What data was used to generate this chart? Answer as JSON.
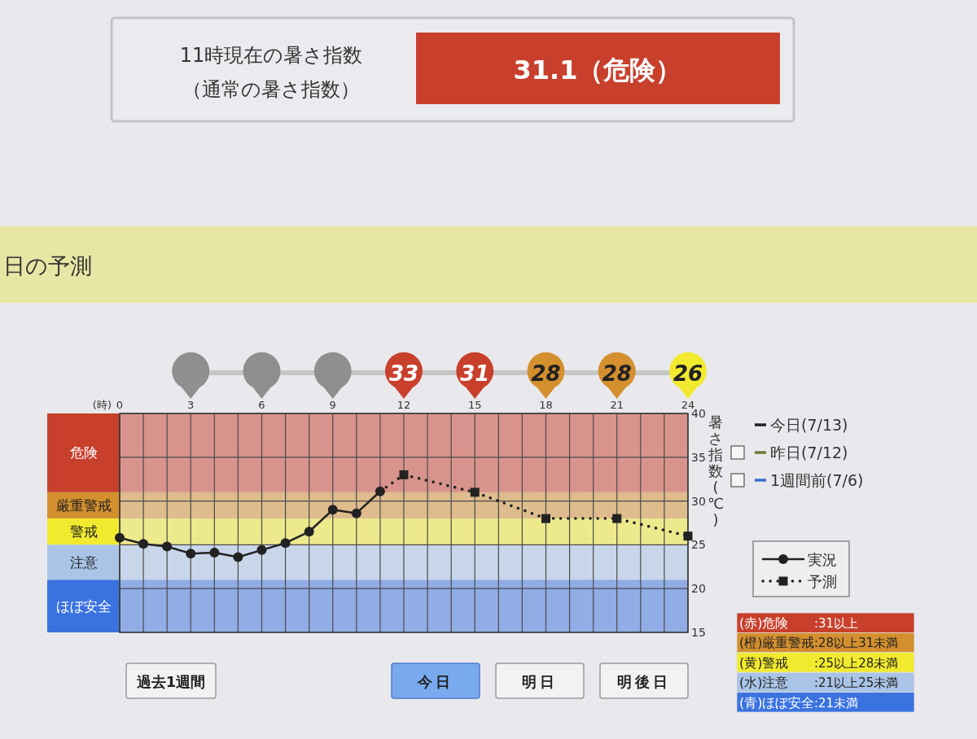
{
  "chart_data": [
    {
      "type": "other",
      "annotations": [
        "11時現在の暑さ指数",
        "（通常の暑さ指数）",
        "31.1（危険）"
      ]
    },
    {
      "type": "other",
      "title": "日の予測",
      "categories": [
        null,
        null,
        null,
        null,
        null,
        null,
        null,
        null,
        null
      ],
      "values": [
        null,
        null,
        null,
        null,
        33,
        31,
        28,
        28,
        26
      ],
      "colors": [
        null,
        "#8f8f8f",
        "#8f8f8f",
        "#8f8f8f",
        "#c8402c",
        "#c8402c",
        "#d4902e",
        "#d4902e",
        "#f2ea2e"
      ],
      "data_labels": true
    },
    {
      "type": "line",
      "xlabel": "(時)",
      "ylabel": "暑さ指数(℃)",
      "legend_title": "今日(7/13)",
      "legend": "right",
      "grid": true,
      "xlim": [
        0,
        24
      ],
      "xticks": [
        0,
        {
          "value": 1,
          "label": null
        },
        {
          "value": 2,
          "label": null
        },
        3,
        {
          "value": 4,
          "label": null
        },
        {
          "value": 5,
          "label": null
        },
        6,
        {
          "value": 7,
          "label": null
        },
        {
          "value": 8,
          "label": null
        },
        9,
        {
          "value": 10,
          "label": null
        },
        {
          "value": 11,
          "label": null
        },
        12,
        {
          "value": 13,
          "label": null
        },
        {
          "value": 14,
          "label": null
        },
        15,
        {
          "value": 16,
          "label": null
        },
        {
          "value": 17,
          "label": null
        },
        18,
        {
          "value": 19,
          "label": null
        },
        {
          "value": 20,
          "label": null
        },
        21,
        {
          "value": 22,
          "label": null
        },
        {
          "value": 23,
          "label": null
        },
        24
      ],
      "ylim": [
        15,
        40
      ],
      "yticks": [
        15,
        20,
        25,
        30,
        35,
        40
      ],
      "series": [
        {
          "name": "実況",
          "color": "#222222",
          "marker": "circle",
          "line_style": "solid",
          "x": [
            0,
            1,
            2,
            3,
            4,
            5,
            6,
            7,
            8,
            9,
            10,
            11
          ],
          "values": [
            25.8,
            25.1,
            24.8,
            24.0,
            24.1,
            23.6,
            24.4,
            25.2,
            26.5,
            29.0,
            28.6,
            31.1
          ]
        },
        {
          "name": "予測",
          "color": "#222222",
          "marker": "square",
          "line_style": "dotted",
          "x": [
            11,
            12,
            15,
            18,
            21,
            24
          ],
          "values": [
            31.1,
            33,
            31,
            28,
            28,
            26
          ]
        },
        {
          "name": "昨日(7/12)",
          "color": "#6f7a3a",
          "values": [
            null
          ]
        },
        {
          "name": "1週間前(7/6)",
          "color": "#3d6fd0",
          "values": [
            null
          ]
        }
      ],
      "bands": [
        {
          "axis": "y",
          "from": 31,
          "to": 40,
          "label": "危険",
          "color": "#c8402c"
        },
        {
          "axis": "y",
          "from": 28,
          "to": 31,
          "label": "厳重警戒",
          "color": "#d4902e"
        },
        {
          "axis": "y",
          "from": 25,
          "to": 28,
          "label": "警戒",
          "color": "#f2ea2e"
        },
        {
          "axis": "y",
          "from": 21,
          "to": 25,
          "label": "注意",
          "color": "#a9c4e6"
        },
        {
          "axis": "y",
          "from": 15,
          "to": 21,
          "label": "ほぼ安全",
          "color": "#3a72e0"
        }
      ],
      "annotations": [
        "(赤)危険",
        ":31以上",
        "(橙)厳重警戒",
        ":28以上31未満",
        "(黄)警戒",
        ":25以上28未満",
        "(水)注意",
        ":21以上25未満",
        "(青)ほぼ安全",
        ":21未満",
        "過去1週間",
        "今日",
        "明日",
        "明後日"
      ]
    }
  ]
}
